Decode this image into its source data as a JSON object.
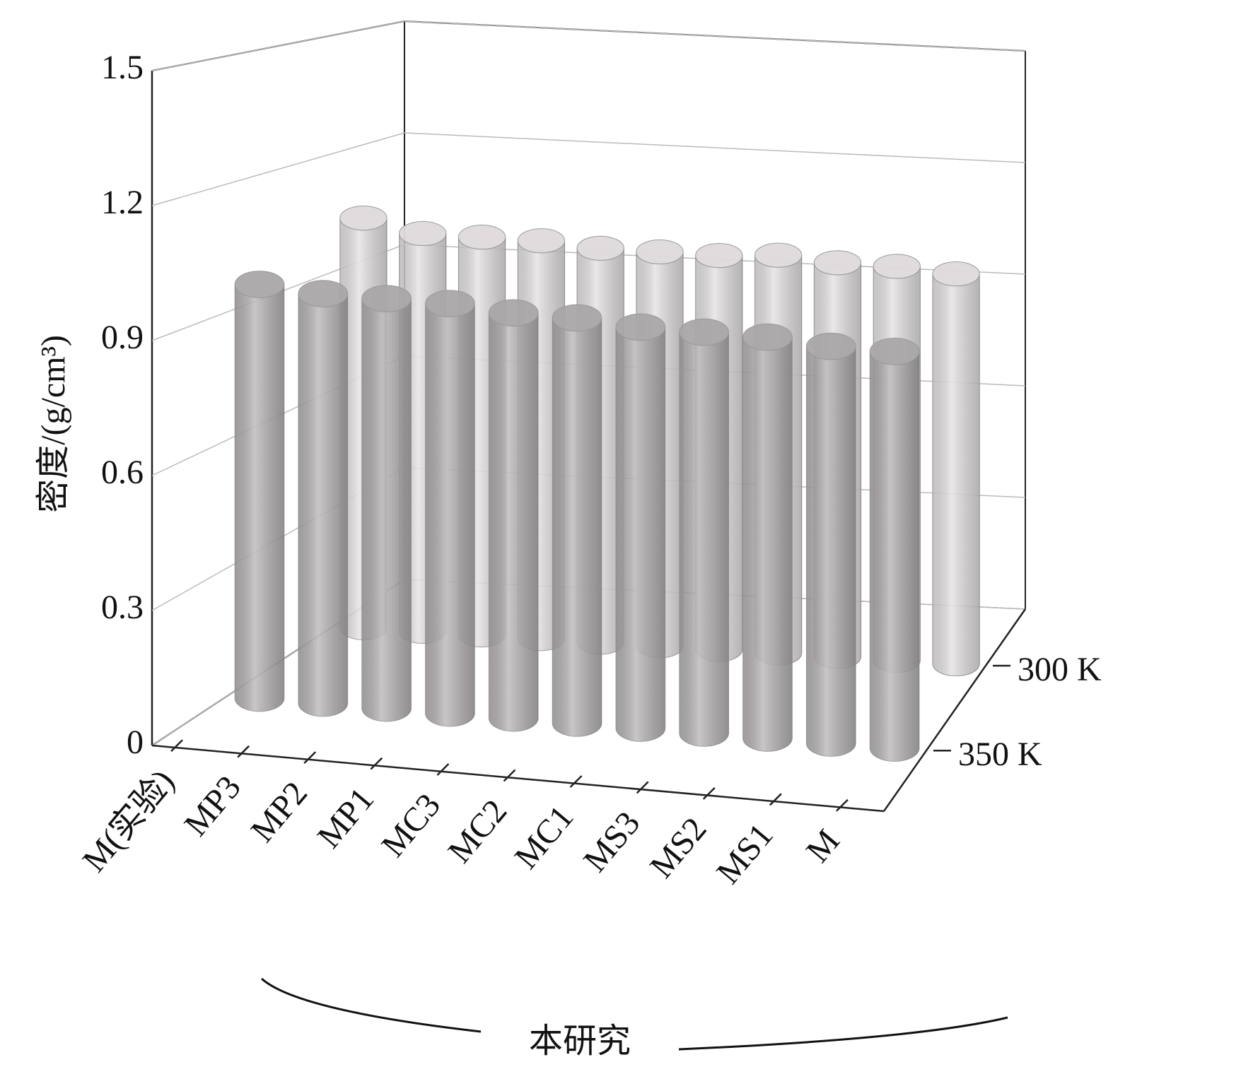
{
  "chart_data": {
    "type": "bar3d",
    "y_label": "密度/(g/cm³)",
    "annotation": "本研究",
    "categories": [
      "M(实验)",
      "MP3",
      "MP2",
      "MP1",
      "MC3",
      "MC2",
      "MC1",
      "MS3",
      "MS2",
      "MS1",
      "M"
    ],
    "series": [
      {
        "name": "300 K",
        "color": "#dedadc",
        "values": [
          1.04,
          1.01,
          1.01,
          1.01,
          1.0,
          1.0,
          1.0,
          1.01,
          1.0,
          1.0,
          0.99
        ]
      },
      {
        "name": "350 K",
        "color": "#aaa6a8",
        "values": [
          0.97,
          0.96,
          0.96,
          0.96,
          0.95,
          0.95,
          0.94,
          0.94,
          0.94,
          0.93,
          0.93
        ]
      }
    ],
    "ylim": [
      0,
      1.5
    ],
    "yticks": [
      0,
      0.3,
      0.6,
      0.9,
      1.2,
      1.5
    ],
    "grid": true
  }
}
